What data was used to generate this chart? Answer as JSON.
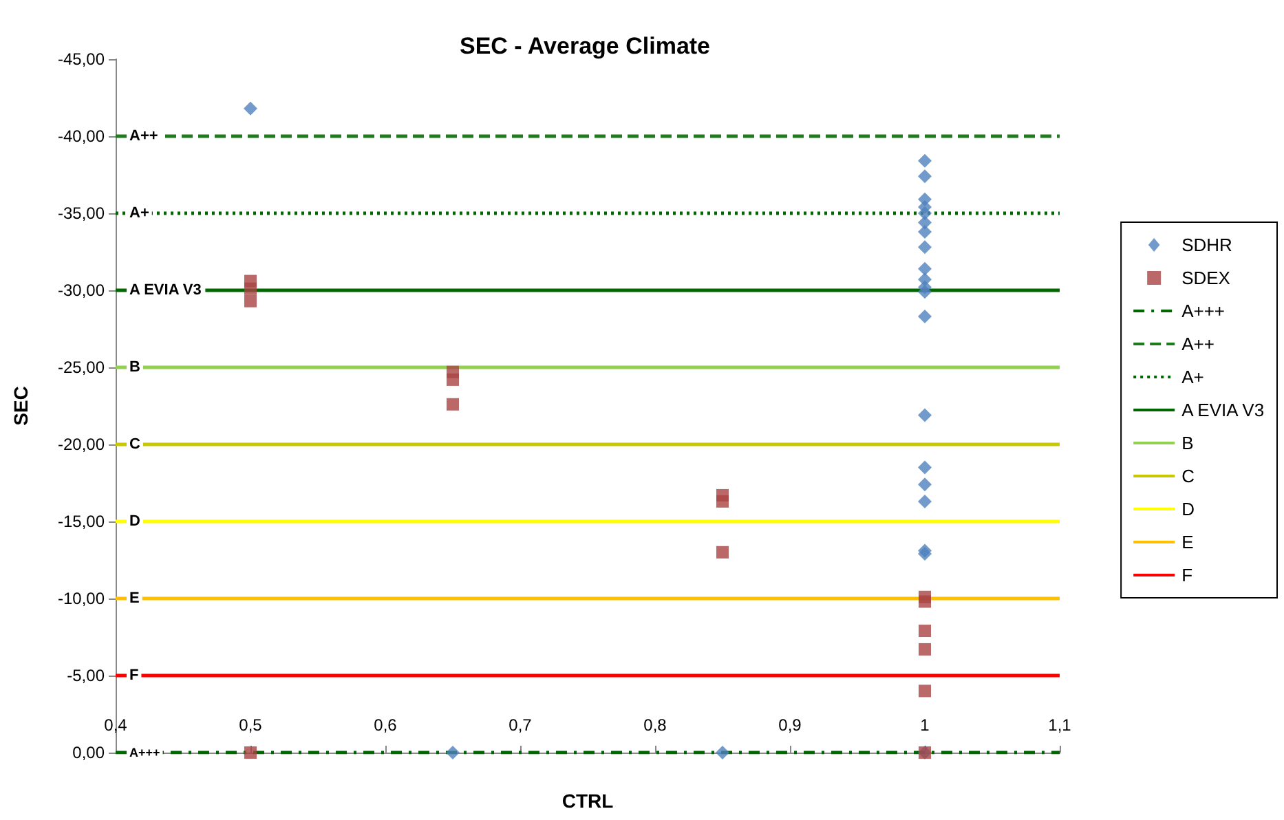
{
  "chart_data": {
    "type": "scatter",
    "title": "SEC - Average Climate",
    "xlabel": "CTRL",
    "ylabel": "SEC",
    "xlim": [
      0.4,
      1.1
    ],
    "xticks": [
      {
        "value": 0.4,
        "label": "0,4"
      },
      {
        "value": 0.5,
        "label": "0,5"
      },
      {
        "value": 0.6,
        "label": "0,6"
      },
      {
        "value": 0.7,
        "label": "0,7"
      },
      {
        "value": 0.8,
        "label": "0,8"
      },
      {
        "value": 0.9,
        "label": "0,9"
      },
      {
        "value": 1,
        "label": "1"
      },
      {
        "value": 1.1,
        "label": "1,1"
      }
    ],
    "ylim": [
      0,
      -45
    ],
    "yticks": [
      {
        "value": 0,
        "label": "0,00"
      },
      {
        "value": -5,
        "label": "-5,00"
      },
      {
        "value": -10,
        "label": "-10,00"
      },
      {
        "value": -15,
        "label": "-15,00"
      },
      {
        "value": -20,
        "label": "-20,00"
      },
      {
        "value": -25,
        "label": "-25,00"
      },
      {
        "value": -30,
        "label": "-30,00"
      },
      {
        "value": -35,
        "label": "-35,00"
      },
      {
        "value": -40,
        "label": "-40,00"
      },
      {
        "value": -45,
        "label": "-45,00"
      }
    ],
    "series": [
      {
        "name": "SDHR",
        "color": "#4f81bd",
        "marker": "diamond",
        "x": [
          0.5,
          0.65,
          0.85,
          1,
          1,
          1,
          1,
          1,
          1,
          1,
          1,
          1,
          1,
          1,
          1,
          1,
          1,
          1,
          1,
          1,
          1,
          1,
          1
        ],
        "values": [
          -41.8,
          0,
          0,
          -38.4,
          -37.4,
          -35.9,
          -35.4,
          -35.0,
          -34.4,
          -33.8,
          -32.8,
          -31.4,
          -30.7,
          -29.9,
          -28.3,
          -21.9,
          -18.5,
          -17.4,
          -16.3,
          -13.1,
          -12.9,
          0,
          -30.2
        ]
      },
      {
        "name": "SDEX",
        "color": "#a94442",
        "marker": "square",
        "x": [
          0.5,
          0.5,
          0.5,
          0.5,
          0.65,
          0.65,
          0.65,
          0.85,
          0.85,
          0.85,
          1,
          1,
          1,
          1,
          1,
          1
        ],
        "values": [
          -30.6,
          -30.1,
          -29.3,
          0,
          -24.7,
          -24.2,
          -22.6,
          -16.7,
          -16.3,
          -13.0,
          -10.1,
          -9.8,
          -7.9,
          -6.7,
          -4.0,
          0
        ]
      }
    ],
    "ref_lines": [
      {
        "axis": "y",
        "value": 0,
        "label": "A+++",
        "color": "#006600",
        "line_style": "dashdot"
      },
      {
        "axis": "y",
        "value": -40,
        "label": "A++",
        "color": "#1e7b1e",
        "line_style": "dashed"
      },
      {
        "axis": "y",
        "value": -35,
        "label": "A+",
        "color": "#006600",
        "line_style": "dotted"
      },
      {
        "axis": "y",
        "value": -30,
        "label": "A EVIA V3",
        "color": "#006600",
        "line_style": "solid"
      },
      {
        "axis": "y",
        "value": -25,
        "label": "B",
        "color": "#92d050",
        "line_style": "solid"
      },
      {
        "axis": "y",
        "value": -20,
        "label": "C",
        "color": "#c8c800",
        "line_style": "solid"
      },
      {
        "axis": "y",
        "value": -15,
        "label": "D",
        "color": "#ffff00",
        "line_style": "solid"
      },
      {
        "axis": "y",
        "value": -10,
        "label": "E",
        "color": "#ffc000",
        "line_style": "solid"
      },
      {
        "axis": "y",
        "value": -5,
        "label": "F",
        "color": "#ff0000",
        "line_style": "solid"
      }
    ],
    "grid": false,
    "legend": "right"
  }
}
